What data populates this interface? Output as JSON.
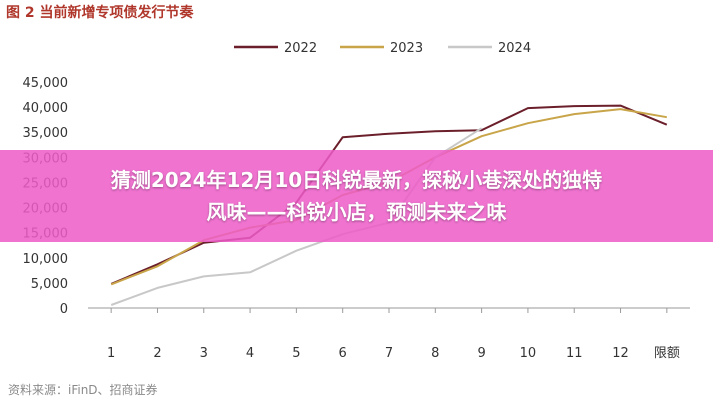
{
  "figure_title": "图 2 当前新增专项债发行节奏",
  "source_note": "资料来源：iFinD、招商证券",
  "banner": {
    "line1": "猜测2024年12月10日科锐最新，探秘小巷深处的独特",
    "line2": "风味——科锐小店，预测未来之味"
  },
  "chart_data": {
    "type": "line",
    "title": "",
    "xlabel": "",
    "ylabel": "",
    "categories": [
      "1",
      "2",
      "3",
      "4",
      "5",
      "6",
      "7",
      "8",
      "9",
      "10",
      "11",
      "12",
      "限额"
    ],
    "ylim": [
      0,
      45000
    ],
    "yticks": [
      "0",
      "5,000",
      "10,000",
      "15,000",
      "20,000",
      "25,000",
      "30,000",
      "35,000",
      "40,000",
      "45,000"
    ],
    "grid": false,
    "legend_position": "top-center",
    "series": [
      {
        "name": "2022",
        "color": "#6b1f2b",
        "values": [
          4800,
          8700,
          13000,
          14000,
          21000,
          34000,
          34700,
          35200,
          35400,
          39800,
          40200,
          40300,
          36500
        ]
      },
      {
        "name": "2023",
        "color": "#c9a54a",
        "values": [
          4700,
          8300,
          13500,
          16000,
          17500,
          22500,
          25000,
          30000,
          34200,
          36800,
          38600,
          39600,
          38000
        ]
      },
      {
        "name": "2024",
        "color": "#c8c8c8",
        "values": [
          600,
          4000,
          6300,
          7100,
          11400,
          14700,
          17000,
          30000,
          35800,
          null,
          null,
          null,
          null
        ]
      }
    ]
  }
}
